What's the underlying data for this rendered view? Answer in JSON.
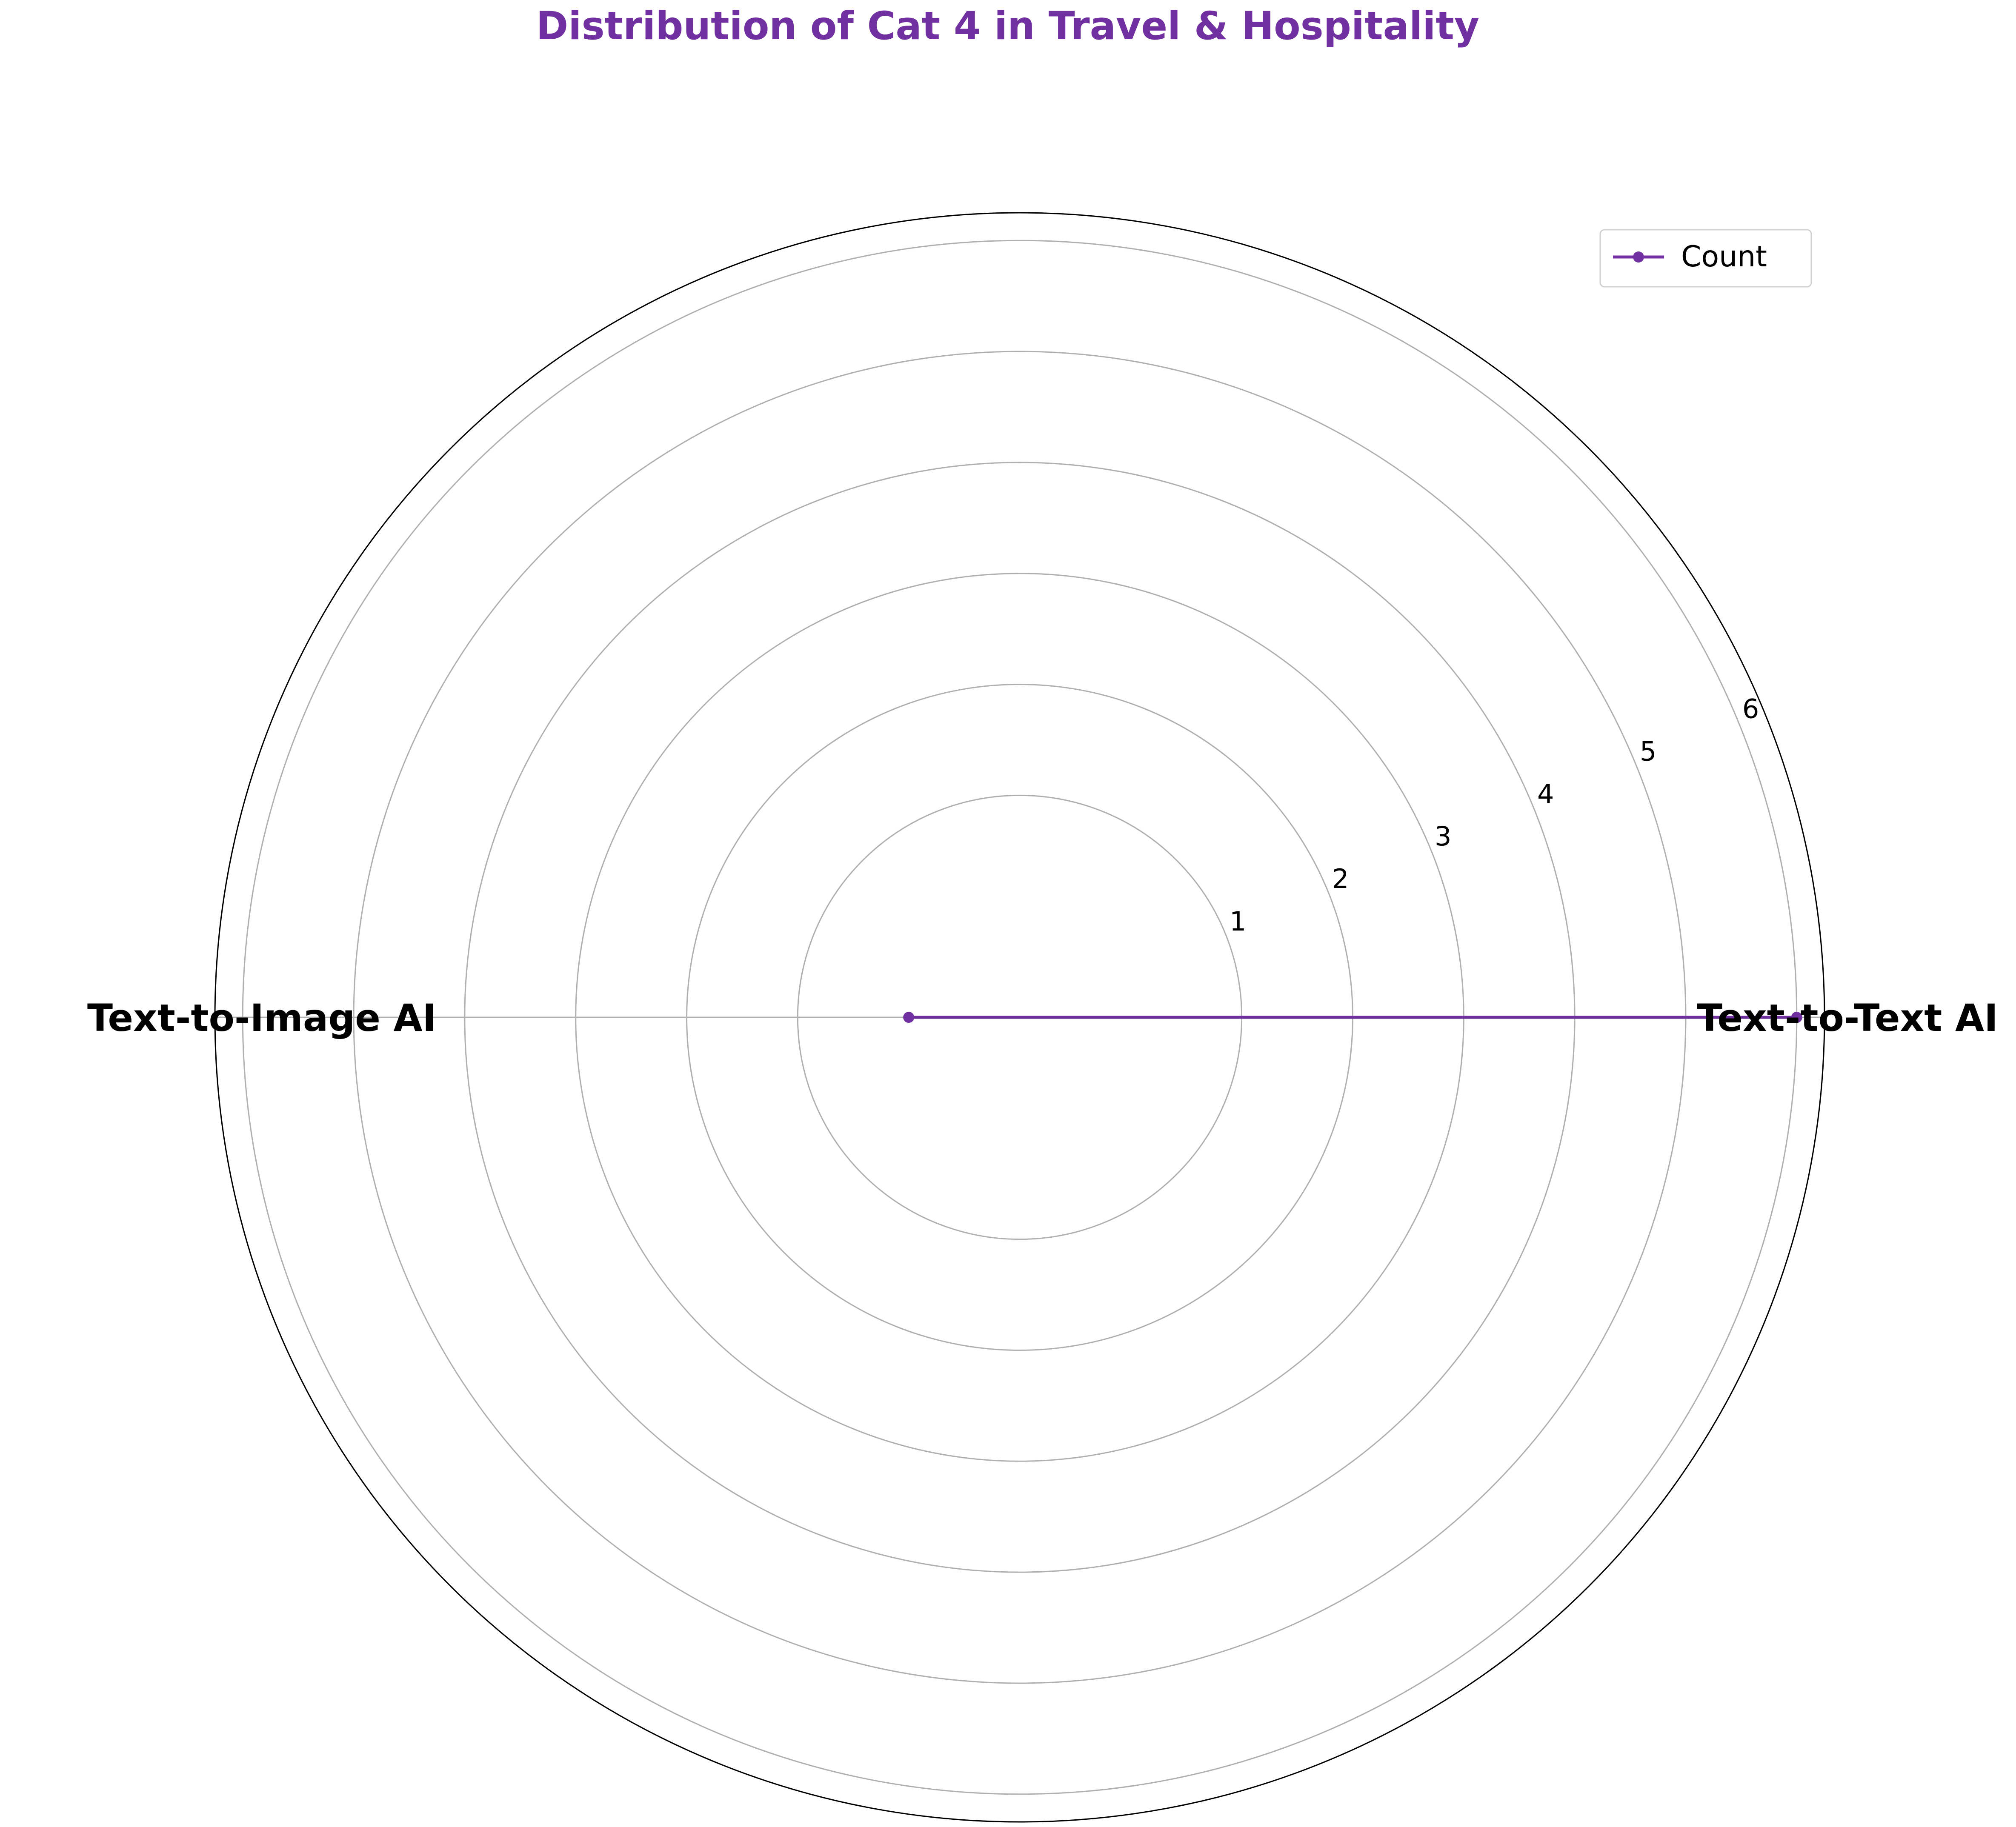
{
  "chart_data": {
    "type": "radar",
    "title": "Distribution of Cat 4 in Travel & Hospitality",
    "categories": [
      "Text-to-Text AI",
      "Text-to-Image AI"
    ],
    "series": [
      {
        "name": "Count",
        "values": [
          6,
          0
        ]
      }
    ],
    "r_ticks": [
      "1",
      "2",
      "3",
      "4",
      "5",
      "6"
    ],
    "r_range": [
      -1,
      6.25
    ],
    "grid": true,
    "legend": "top-right",
    "colors": {
      "series": "#7030a0",
      "title": "#7030a0",
      "grid": "#b0b0b0",
      "frame": "#000000"
    }
  }
}
